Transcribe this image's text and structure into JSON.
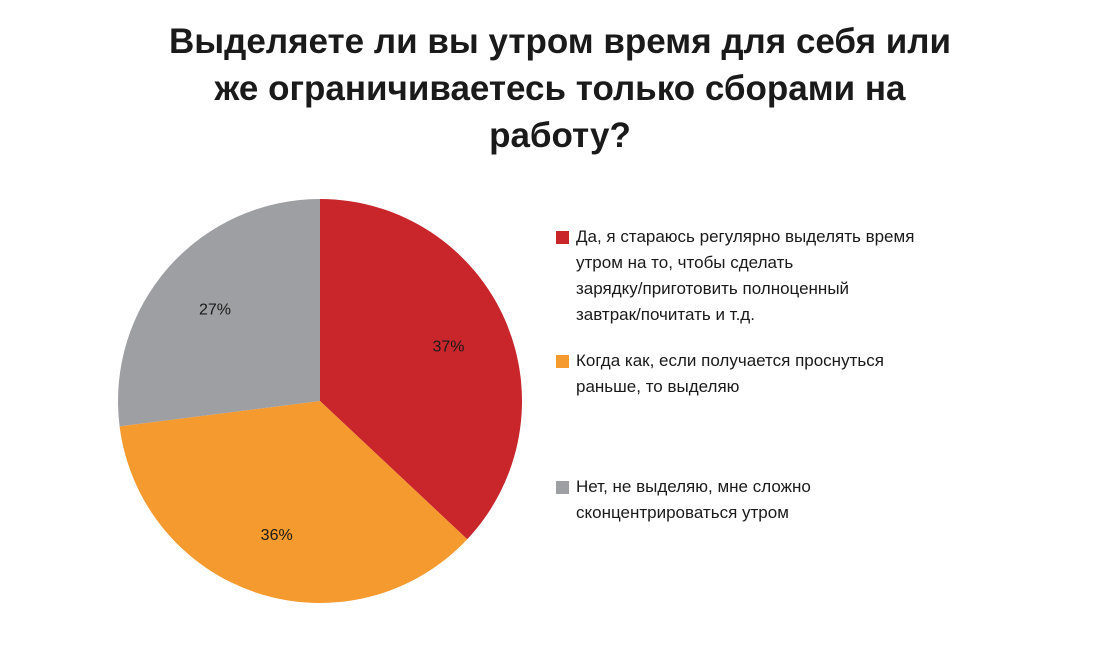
{
  "chart_data": {
    "type": "pie",
    "title_lines": [
      "Выделяете ли вы утром время для себя или",
      "же ограничиваетесь только сборами на",
      "работу?"
    ],
    "slices": [
      {
        "label": "Да, я стараюсь регулярно выделять время утром на то, чтобы сделать зарядку/приготовить полноценный завтрак/почитать  и т.д.",
        "label_lines": [
          "Да, я стараюсь регулярно выделять время",
          "утром на то, чтобы сделать",
          "зарядку/приготовить полноценный",
          "завтрак/почитать  и т.д."
        ],
        "value": 37,
        "value_label": "37%",
        "color": "#c9262c"
      },
      {
        "label": "Когда как, если получается проснуться раньше, то выделяю",
        "label_lines": [
          "Когда как, если получается проснуться",
          "раньше, то выделяю"
        ],
        "value": 36,
        "value_label": "36%",
        "color": "#f59a2e"
      },
      {
        "label": "Нет, не выделяю,  мне сложно сконцентрироваться утром",
        "label_lines": [
          "Нет, не выделяю,  мне сложно",
          "сконцентрироваться утром"
        ],
        "value": 27,
        "value_label": "27%",
        "color": "#9e9fa3"
      }
    ],
    "legend_position": "right"
  }
}
